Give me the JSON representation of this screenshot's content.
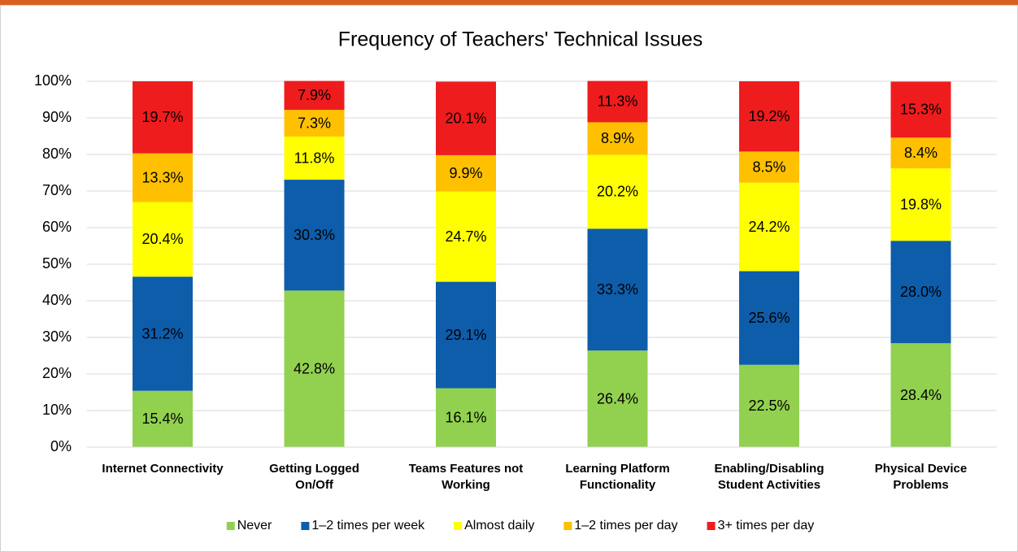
{
  "chart_data": {
    "type": "stacked_bar",
    "title": "Frequency of Teachers' Technical Issues",
    "categories": [
      "Internet Connectivity",
      "Getting Logged\nOn/Off",
      "Teams Features not\nWorking",
      "Learning Platform\nFunctionality",
      "Enabling/Disabling\nStudent Activities",
      "Physical Device\nProblems"
    ],
    "series": [
      {
        "name": "Never",
        "color": "#92d050",
        "label_color": "#000000",
        "values": [
          15.4,
          42.8,
          16.1,
          26.4,
          22.5,
          28.4
        ],
        "value_labels": [
          "15.4%",
          "42.8%",
          "16.1%",
          "26.4%",
          "22.5%",
          "28.4%"
        ]
      },
      {
        "name": "1–2 times per week",
        "color": "#0d5dab",
        "label_color": "#ffffff",
        "values": [
          31.2,
          30.3,
          29.1,
          33.3,
          25.6,
          28.0
        ],
        "value_labels": [
          "31.2%",
          "30.3%",
          "29.1%",
          "33.3%",
          "25.6%",
          "28.0%"
        ]
      },
      {
        "name": "Almost daily",
        "color": "#ffff00",
        "label_color": "#000000",
        "values": [
          20.4,
          11.8,
          24.7,
          20.2,
          24.2,
          19.8
        ],
        "value_labels": [
          "20.4%",
          "11.8%",
          "24.7%",
          "20.2%",
          "24.2%",
          "19.8%"
        ]
      },
      {
        "name": "1–2 times per day",
        "color": "#ffc000",
        "label_color": "#000000",
        "values": [
          13.3,
          7.3,
          9.9,
          8.9,
          8.5,
          8.4
        ],
        "value_labels": [
          "13.3%",
          "7.3%",
          "9.9%",
          "8.9%",
          "8.5%",
          "8.4%"
        ]
      },
      {
        "name": "3+ times per day",
        "color": "#ee1c1c",
        "label_color": "#ffffff",
        "values": [
          19.7,
          7.9,
          20.1,
          11.3,
          19.2,
          15.3
        ],
        "value_labels": [
          "19.7%",
          "7.9%",
          "20.1%",
          "11.3%",
          "19.2%",
          "15.3%"
        ]
      }
    ],
    "ylim": [
      0,
      100
    ],
    "yticks": [
      {
        "value": 0,
        "label": "0%"
      },
      {
        "value": 10,
        "label": "10%"
      },
      {
        "value": 20,
        "label": "20%"
      },
      {
        "value": 30,
        "label": "30%"
      },
      {
        "value": 40,
        "label": "40%"
      },
      {
        "value": 50,
        "label": "50%"
      },
      {
        "value": 60,
        "label": "60%"
      },
      {
        "value": 70,
        "label": "70%"
      },
      {
        "value": 80,
        "label": "80%"
      },
      {
        "value": 90,
        "label": "90%"
      },
      {
        "value": 100,
        "label": "100%"
      }
    ],
    "grid": true,
    "legend": "bottom"
  }
}
